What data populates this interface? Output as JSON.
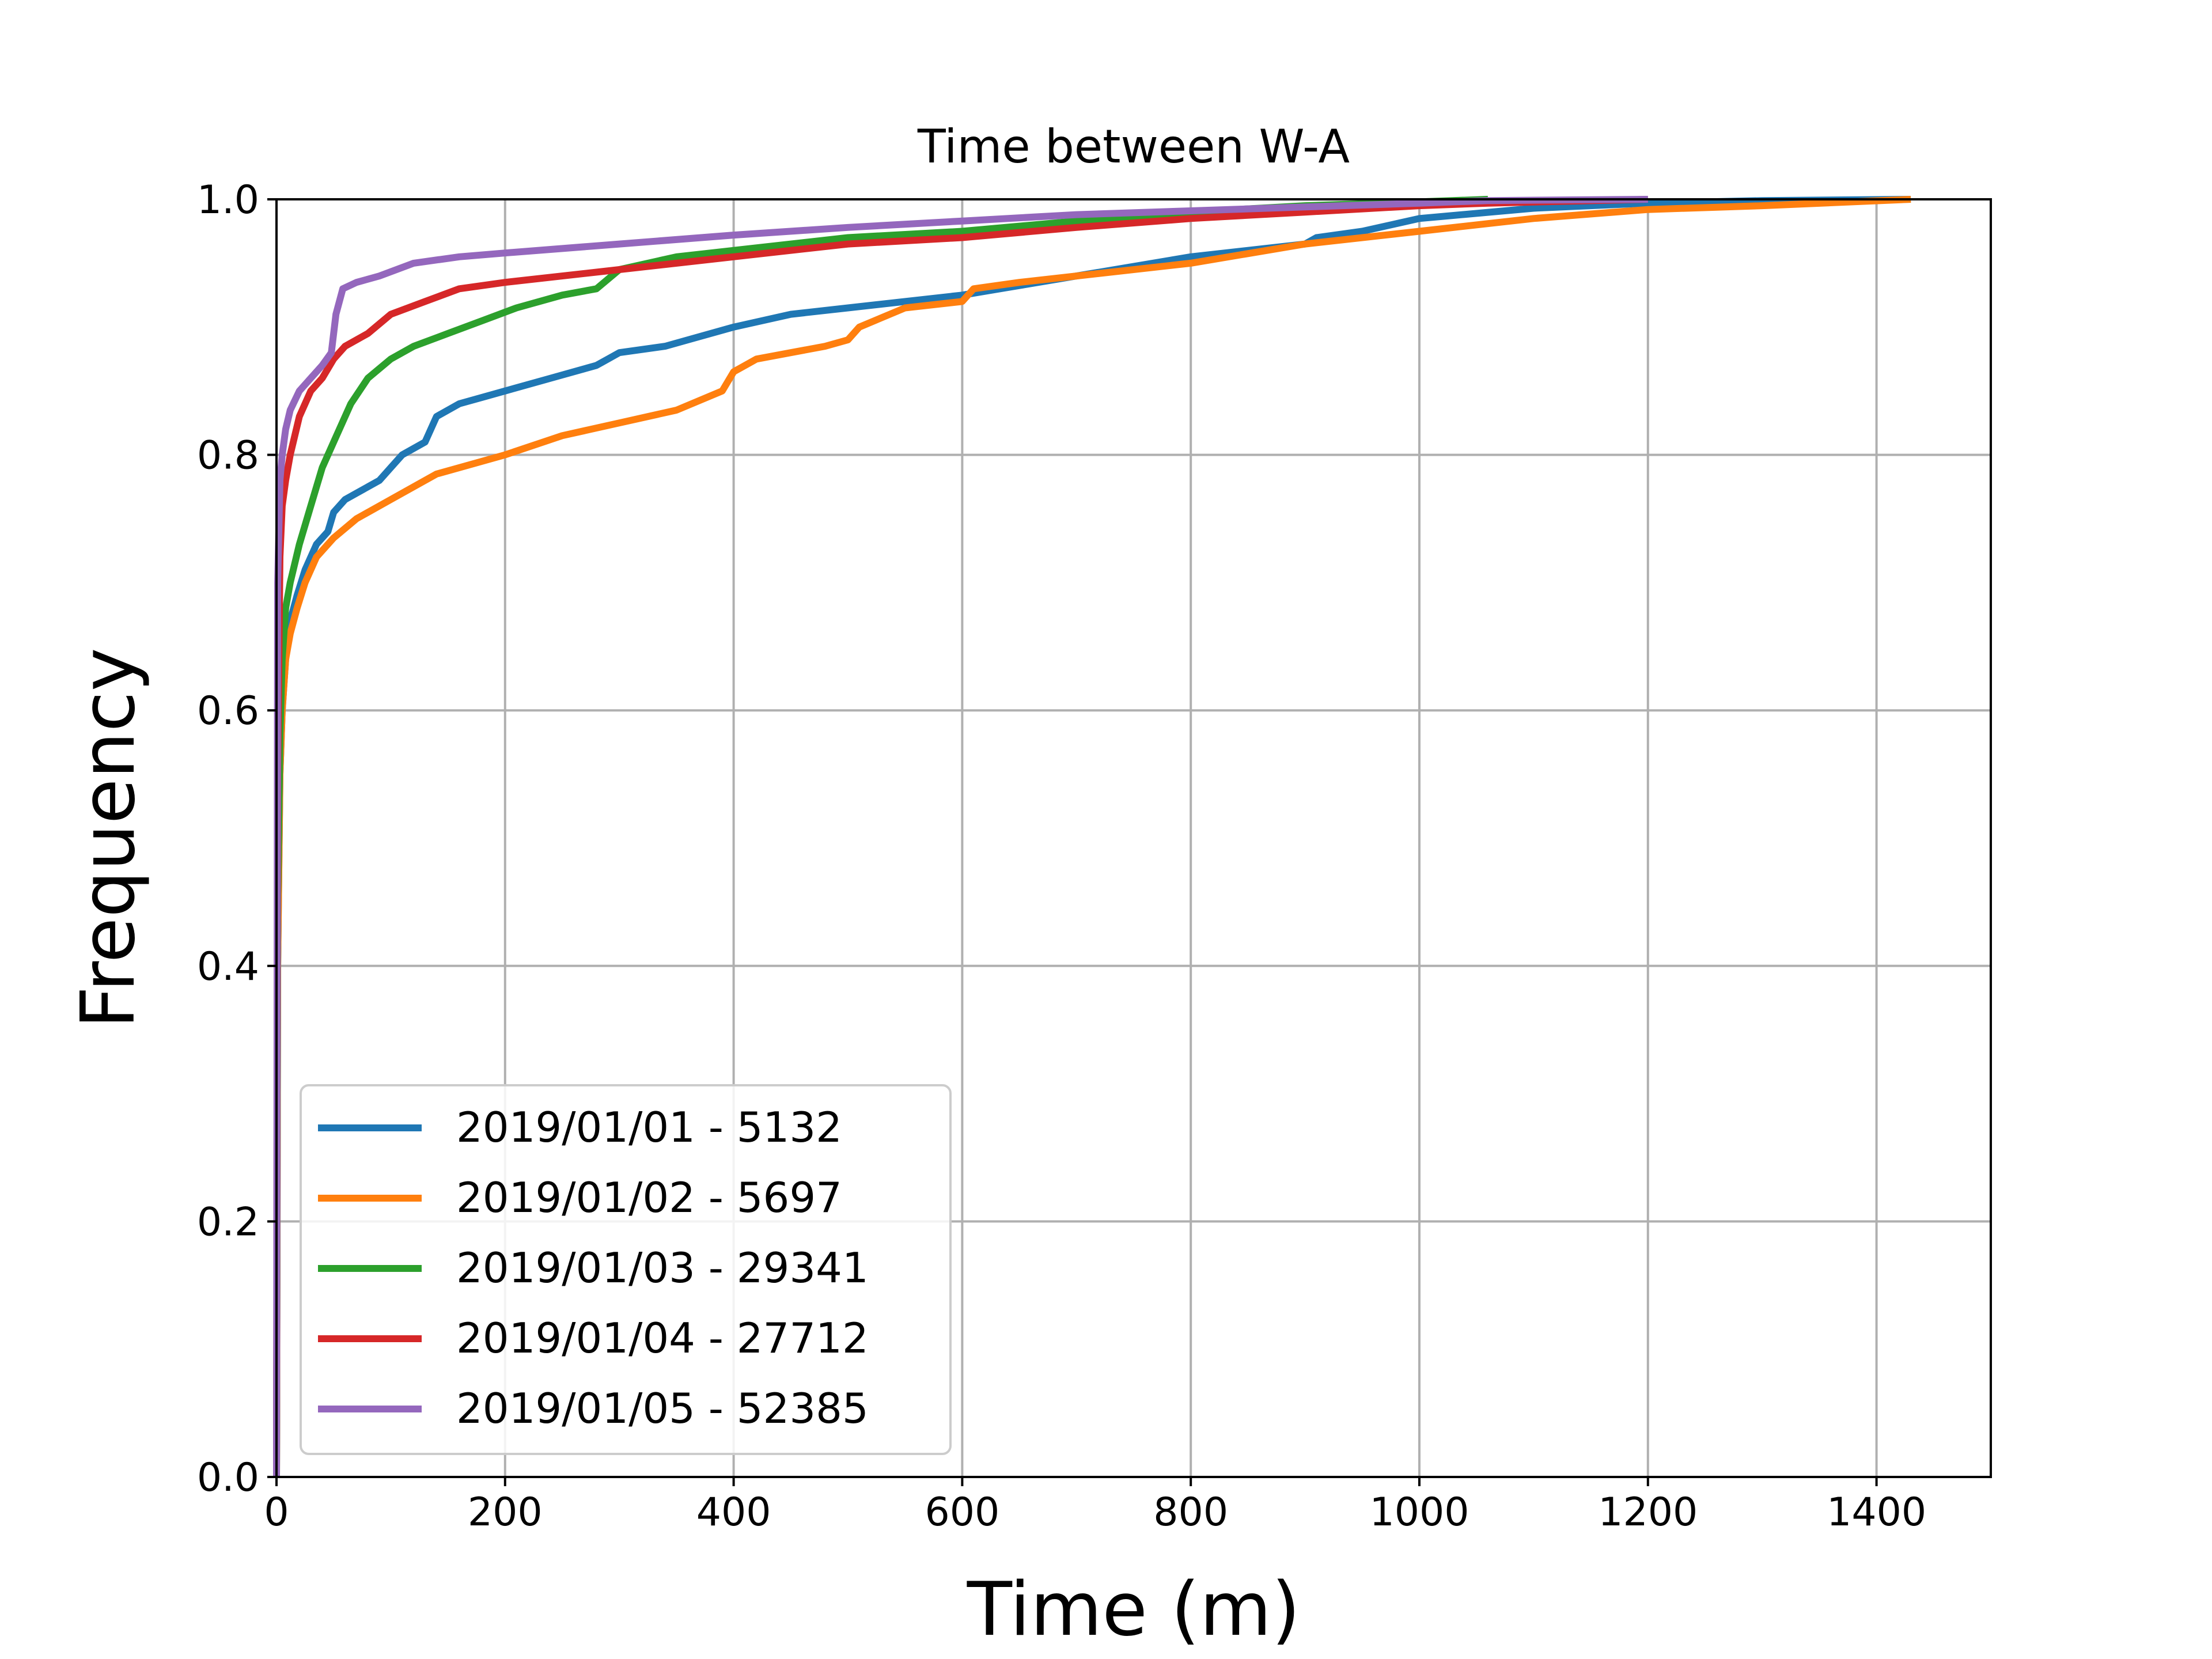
{
  "chart_data": {
    "type": "line",
    "title": "Time between W-A",
    "xlabel": "Time (m)",
    "ylabel": "Frequency",
    "xlim": [
      0,
      1500
    ],
    "ylim": [
      0,
      1.0
    ],
    "xticks": [
      0,
      200,
      400,
      600,
      800,
      1000,
      1200,
      1400
    ],
    "yticks": [
      0.0,
      0.2,
      0.4,
      0.6,
      0.8,
      1.0
    ],
    "xtick_labels": [
      "0",
      "200",
      "400",
      "600",
      "800",
      "1000",
      "1200",
      "1400"
    ],
    "ytick_labels": [
      "0.0",
      "0.2",
      "0.4",
      "0.6",
      "0.8",
      "1.0"
    ],
    "grid": true,
    "legend_position": "lower-left",
    "series": [
      {
        "name": "2019/01/01 - 5132",
        "color": "#1f77b4",
        "points": [
          [
            0,
            0
          ],
          [
            1,
            0.4
          ],
          [
            3,
            0.55
          ],
          [
            5,
            0.6
          ],
          [
            8,
            0.64
          ],
          [
            12,
            0.67
          ],
          [
            18,
            0.69
          ],
          [
            25,
            0.71
          ],
          [
            35,
            0.73
          ],
          [
            45,
            0.74
          ],
          [
            50,
            0.755
          ],
          [
            60,
            0.765
          ],
          [
            70,
            0.77
          ],
          [
            90,
            0.78
          ],
          [
            100,
            0.79
          ],
          [
            110,
            0.8
          ],
          [
            130,
            0.81
          ],
          [
            140,
            0.83
          ],
          [
            160,
            0.84
          ],
          [
            180,
            0.845
          ],
          [
            200,
            0.85
          ],
          [
            240,
            0.86
          ],
          [
            280,
            0.87
          ],
          [
            290,
            0.875
          ],
          [
            300,
            0.88
          ],
          [
            340,
            0.885
          ],
          [
            360,
            0.89
          ],
          [
            400,
            0.9
          ],
          [
            450,
            0.91
          ],
          [
            500,
            0.915
          ],
          [
            600,
            0.925
          ],
          [
            700,
            0.94
          ],
          [
            800,
            0.955
          ],
          [
            900,
            0.965
          ],
          [
            910,
            0.97
          ],
          [
            950,
            0.975
          ],
          [
            1000,
            0.985
          ],
          [
            1100,
            0.993
          ],
          [
            1200,
            0.997
          ],
          [
            1300,
            0.999
          ],
          [
            1430,
            1.0
          ]
        ]
      },
      {
        "name": "2019/01/02 - 5697",
        "color": "#ff7f0e",
        "points": [
          [
            0,
            0
          ],
          [
            1,
            0.4
          ],
          [
            3,
            0.55
          ],
          [
            5,
            0.6
          ],
          [
            8,
            0.64
          ],
          [
            12,
            0.66
          ],
          [
            18,
            0.68
          ],
          [
            25,
            0.7
          ],
          [
            35,
            0.72
          ],
          [
            50,
            0.735
          ],
          [
            70,
            0.75
          ],
          [
            100,
            0.765
          ],
          [
            140,
            0.785
          ],
          [
            200,
            0.8
          ],
          [
            250,
            0.815
          ],
          [
            300,
            0.825
          ],
          [
            350,
            0.835
          ],
          [
            390,
            0.85
          ],
          [
            400,
            0.865
          ],
          [
            420,
            0.875
          ],
          [
            450,
            0.88
          ],
          [
            480,
            0.885
          ],
          [
            500,
            0.89
          ],
          [
            510,
            0.9
          ],
          [
            550,
            0.915
          ],
          [
            600,
            0.92
          ],
          [
            610,
            0.93
          ],
          [
            650,
            0.935
          ],
          [
            700,
            0.94
          ],
          [
            800,
            0.95
          ],
          [
            900,
            0.965
          ],
          [
            1000,
            0.975
          ],
          [
            1100,
            0.985
          ],
          [
            1200,
            0.992
          ],
          [
            1300,
            0.995
          ],
          [
            1430,
            1.0
          ]
        ]
      },
      {
        "name": "2019/01/03 - 29341",
        "color": "#2ca02c",
        "points": [
          [
            0,
            0
          ],
          [
            1,
            0.45
          ],
          [
            3,
            0.58
          ],
          [
            5,
            0.64
          ],
          [
            8,
            0.68
          ],
          [
            12,
            0.7
          ],
          [
            20,
            0.73
          ],
          [
            30,
            0.76
          ],
          [
            40,
            0.79
          ],
          [
            50,
            0.81
          ],
          [
            65,
            0.84
          ],
          [
            80,
            0.86
          ],
          [
            100,
            0.875
          ],
          [
            120,
            0.885
          ],
          [
            150,
            0.895
          ],
          [
            180,
            0.905
          ],
          [
            210,
            0.915
          ],
          [
            250,
            0.925
          ],
          [
            280,
            0.93
          ],
          [
            300,
            0.945
          ],
          [
            350,
            0.955
          ],
          [
            400,
            0.96
          ],
          [
            500,
            0.97
          ],
          [
            600,
            0.975
          ],
          [
            700,
            0.983
          ],
          [
            800,
            0.99
          ],
          [
            900,
            0.995
          ],
          [
            1000,
            0.998
          ],
          [
            1060,
            1.0
          ]
        ]
      },
      {
        "name": "2019/01/04 - 27712",
        "color": "#d62728",
        "points": [
          [
            0,
            0
          ],
          [
            1,
            0.55
          ],
          [
            3,
            0.72
          ],
          [
            5,
            0.76
          ],
          [
            8,
            0.78
          ],
          [
            12,
            0.8
          ],
          [
            20,
            0.83
          ],
          [
            30,
            0.85
          ],
          [
            40,
            0.86
          ],
          [
            50,
            0.875
          ],
          [
            60,
            0.885
          ],
          [
            80,
            0.895
          ],
          [
            100,
            0.91
          ],
          [
            130,
            0.92
          ],
          [
            160,
            0.93
          ],
          [
            200,
            0.935
          ],
          [
            300,
            0.945
          ],
          [
            400,
            0.955
          ],
          [
            500,
            0.965
          ],
          [
            600,
            0.97
          ],
          [
            700,
            0.978
          ],
          [
            800,
            0.985
          ],
          [
            900,
            0.99
          ],
          [
            1000,
            0.995
          ],
          [
            1060,
            0.997
          ],
          [
            1200,
            1.0
          ]
        ]
      },
      {
        "name": "2019/01/05 - 52385",
        "color": "#9467bd",
        "points": [
          [
            0,
            0
          ],
          [
            1,
            0.7
          ],
          [
            3,
            0.78
          ],
          [
            5,
            0.8
          ],
          [
            8,
            0.82
          ],
          [
            12,
            0.835
          ],
          [
            20,
            0.85
          ],
          [
            30,
            0.86
          ],
          [
            40,
            0.87
          ],
          [
            48,
            0.88
          ],
          [
            52,
            0.91
          ],
          [
            58,
            0.93
          ],
          [
            70,
            0.935
          ],
          [
            90,
            0.94
          ],
          [
            120,
            0.95
          ],
          [
            160,
            0.955
          ],
          [
            200,
            0.958
          ],
          [
            300,
            0.965
          ],
          [
            400,
            0.972
          ],
          [
            500,
            0.978
          ],
          [
            600,
            0.983
          ],
          [
            700,
            0.988
          ],
          [
            800,
            0.991
          ],
          [
            900,
            0.994
          ],
          [
            1000,
            0.997
          ],
          [
            1060,
            0.999
          ],
          [
            1200,
            1.0
          ]
        ]
      }
    ]
  }
}
